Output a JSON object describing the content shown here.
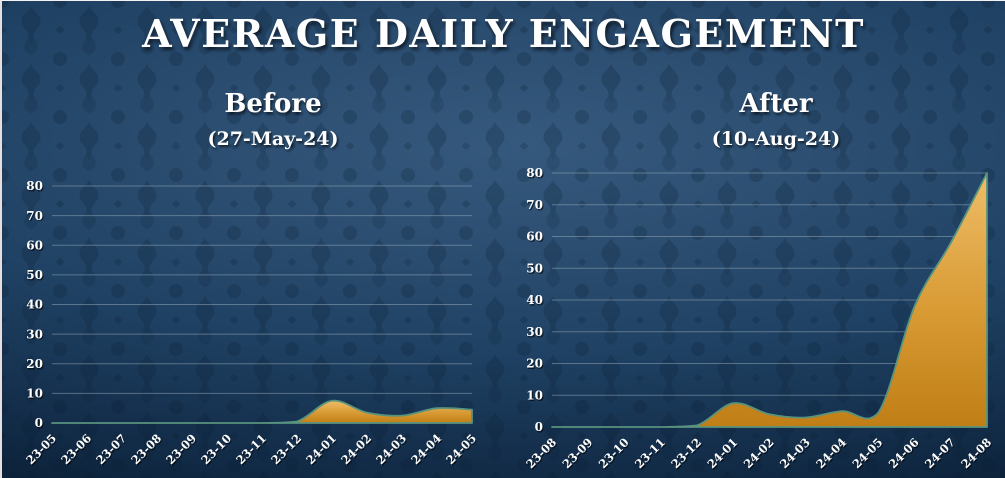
{
  "page": {
    "title": "AVERAGE DAILY ENGAGEMENT"
  },
  "theme": {
    "background": "#1f4163",
    "pattern_motif": "#0a1c31",
    "text": "#ffffff",
    "gridline": "#9fb2c0",
    "line": "#58937f",
    "area_top": "#eebd68",
    "area_mid": "#d89a33",
    "area_bottom": "#c07e16"
  },
  "chart_data": [
    {
      "type": "area",
      "title": "Before",
      "subtitle": "(27-May-24)",
      "categories": [
        "23-05",
        "23-06",
        "23-07",
        "23-08",
        "23-09",
        "23-10",
        "23-11",
        "23-12",
        "24-01",
        "24-02",
        "24-03",
        "24-04",
        "24-05"
      ],
      "series": [
        {
          "name": "Average daily engagement",
          "values": [
            0,
            0,
            0,
            0,
            0,
            0,
            0,
            0.5,
            7.5,
            3.5,
            2.5,
            5,
            4.5
          ]
        }
      ],
      "xlabel": "",
      "ylabel": "",
      "ylim": [
        0,
        80
      ],
      "yticks": [
        0,
        10,
        20,
        30,
        40,
        50,
        60,
        70,
        80
      ],
      "grid": true,
      "legend": "none"
    },
    {
      "type": "area",
      "title": "After",
      "subtitle": "(10-Aug-24)",
      "categories": [
        "23-08",
        "23-09",
        "23-10",
        "23-11",
        "23-12",
        "24-01",
        "24-02",
        "24-03",
        "24-04",
        "24-05",
        "24-06",
        "24-07",
        "24-08"
      ],
      "series": [
        {
          "name": "Average daily engagement",
          "values": [
            0,
            0,
            0,
            0,
            0.5,
            7.5,
            4,
            3,
            5,
            4.5,
            38,
            58,
            80
          ]
        }
      ],
      "xlabel": "",
      "ylabel": "",
      "ylim": [
        0,
        80
      ],
      "yticks": [
        0,
        10,
        20,
        30,
        40,
        50,
        60,
        70,
        80
      ],
      "grid": true,
      "legend": "none"
    }
  ]
}
